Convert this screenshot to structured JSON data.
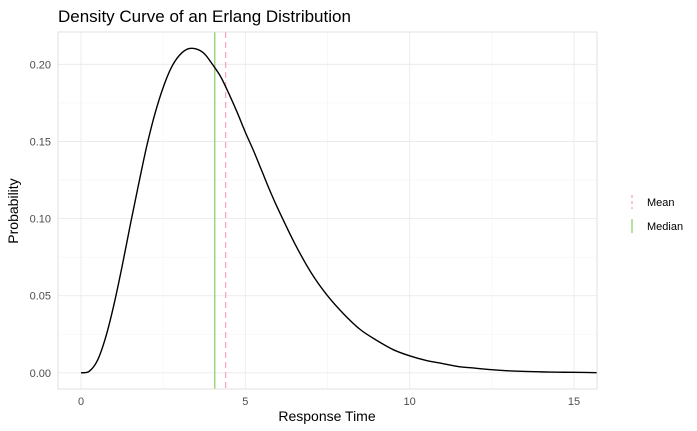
{
  "chart_data": {
    "type": "line",
    "title": "Density Curve of an Erlang Distribution",
    "xlabel": "Response Time",
    "ylabel": "Probability",
    "xlim": [
      -0.7,
      15.7
    ],
    "ylim": [
      -0.0105,
      0.221
    ],
    "x_ticks": [
      0,
      5,
      10,
      15
    ],
    "x_tick_labels": [
      "0",
      "5",
      "10",
      "15"
    ],
    "y_ticks": [
      0.0,
      0.05,
      0.1,
      0.15,
      0.2
    ],
    "y_tick_labels": [
      "0.00",
      "0.05",
      "0.10",
      "0.15",
      "0.20"
    ],
    "grid": true,
    "legend_position": "right",
    "series": [
      {
        "color": "#000000",
        "x": [
          0,
          0.25,
          0.5,
          0.75,
          1.0,
          1.25,
          1.5,
          1.75,
          2.0,
          2.25,
          2.5,
          2.75,
          3.0,
          3.25,
          3.5,
          3.75,
          4.0,
          4.25,
          4.5,
          4.75,
          5.0,
          5.25,
          5.5,
          5.75,
          6.0,
          6.5,
          7.0,
          7.5,
          8.0,
          8.5,
          9.0,
          9.5,
          10.0,
          10.5,
          11.0,
          11.5,
          12.0,
          12.5,
          13.0,
          13.5,
          14.0,
          14.5,
          15.0,
          15.7
        ],
        "y": [
          0.0,
          0.001,
          0.008,
          0.023,
          0.044,
          0.069,
          0.096,
          0.122,
          0.147,
          0.168,
          0.185,
          0.198,
          0.206,
          0.21,
          0.21,
          0.207,
          0.2,
          0.192,
          0.181,
          0.169,
          0.156,
          0.144,
          0.131,
          0.118,
          0.106,
          0.084,
          0.065,
          0.05,
          0.038,
          0.028,
          0.021,
          0.015,
          0.011,
          0.008,
          0.006,
          0.004,
          0.003,
          0.002,
          0.0013,
          0.0009,
          0.0006,
          0.0004,
          0.0003,
          0.0001
        ]
      }
    ],
    "reference_lines": [
      {
        "label": "Mean",
        "x": 4.4,
        "color": "#f4a7bd",
        "dash": "dashed"
      },
      {
        "label": "Median",
        "x": 4.07,
        "color": "#8fd16b",
        "dash": "solid"
      }
    ]
  }
}
